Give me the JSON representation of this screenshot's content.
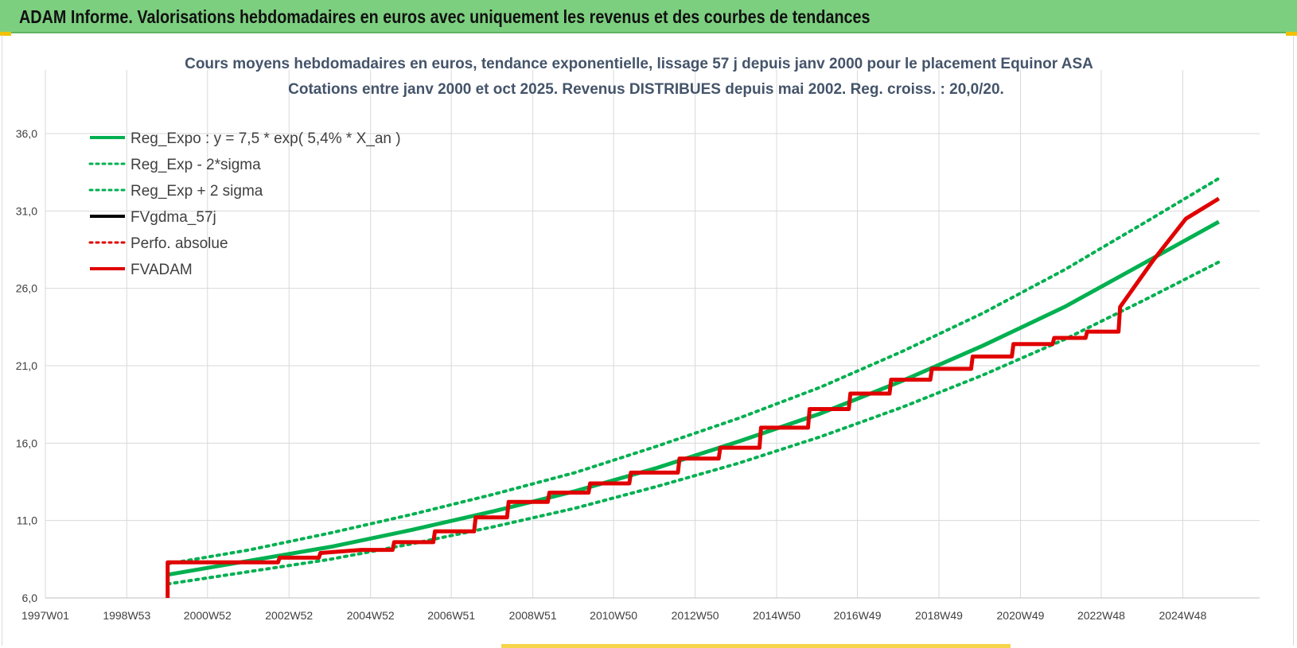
{
  "header": {
    "title": "ADAM Informe. Valorisations hebdomadaires en euros avec uniquement les revenus et des courbes de tendances"
  },
  "colors": {
    "header_bg": "#7ccf7f",
    "regression": "#00b050",
    "fvgdma": "#000000",
    "fvadam": "#e00000",
    "grid": "#d9d9d9"
  },
  "chart_data": {
    "type": "line",
    "title": [
      "Cours moyens hebdomadaires en euros, tendance exponentielle, lissage 57 j depuis janv 2000 pour le placement Equinor ASA",
      "Cotations entre janv 2000 et oct 2025. Revenus DISTRIBUES depuis mai 2002. Reg. croiss. : 20,0/20."
    ],
    "xlabel": "",
    "ylabel": "",
    "x_range": [
      "1997W01",
      "2026W42"
    ],
    "ylim": [
      6.0,
      36.0
    ],
    "y_ticks": [
      "6,0",
      "11,0",
      "16,0",
      "21,0",
      "26,0",
      "31,0",
      "36,0"
    ],
    "x_ticks": [
      "1997W01",
      "1998W53",
      "2000W52",
      "2002W52",
      "2004W52",
      "2006W51",
      "2008W51",
      "2010W50",
      "2012W50",
      "2014W50",
      "2016W49",
      "2018W49",
      "2020W49",
      "2022W48",
      "2024W48"
    ],
    "grid": true,
    "legend_position": "top-left",
    "series": [
      {
        "name": "Reg_Expo : y = 7,5 * exp( 5,4% *  X_an )",
        "style": "solid",
        "color": "#00b050",
        "x": [
          "2000W01",
          "2002W01",
          "2004W01",
          "2006W01",
          "2008W01",
          "2010W01",
          "2012W01",
          "2014W01",
          "2016W01",
          "2018W01",
          "2020W01",
          "2022W01",
          "2024W01",
          "2025W42"
        ],
        "values": [
          7.5,
          8.4,
          9.3,
          10.4,
          11.6,
          12.9,
          14.4,
          16.1,
          17.9,
          20.0,
          22.3,
          24.8,
          27.7,
          30.3
        ]
      },
      {
        "name": "Reg_Exp - 2*sigma",
        "style": "dotted",
        "color": "#00b050",
        "x": [
          "2000W01",
          "2002W01",
          "2004W01",
          "2006W01",
          "2008W01",
          "2010W01",
          "2012W01",
          "2014W01",
          "2016W01",
          "2018W01",
          "2020W01",
          "2022W01",
          "2024W01",
          "2025W42"
        ],
        "values": [
          6.9,
          7.7,
          8.5,
          9.5,
          10.6,
          11.8,
          13.2,
          14.7,
          16.4,
          18.3,
          20.4,
          22.7,
          25.3,
          27.7
        ]
      },
      {
        "name": "Reg_Exp + 2 sigma",
        "style": "dotted",
        "color": "#00b050",
        "x": [
          "2000W01",
          "2002W01",
          "2004W01",
          "2006W01",
          "2008W01",
          "2010W01",
          "2012W01",
          "2014W01",
          "2016W01",
          "2018W01",
          "2020W01",
          "2022W01",
          "2024W01",
          "2025W42"
        ],
        "values": [
          8.2,
          9.1,
          10.2,
          11.4,
          12.7,
          14.1,
          15.8,
          17.6,
          19.6,
          21.9,
          24.4,
          27.2,
          30.3,
          33.1
        ]
      },
      {
        "name": "FVgdma_57j",
        "style": "solid",
        "color": "#000000",
        "x": [
          "2000W01",
          "2000W40",
          "2001W40",
          "2002W40",
          "2003W40",
          "2004W40",
          "2005W30",
          "2006W30",
          "2007W30",
          "2008W20",
          "2009W20",
          "2010W20",
          "2011W20",
          "2012W30",
          "2013W30",
          "2014W30",
          "2015W40",
          "2016W40",
          "2017W40",
          "2018W40",
          "2019W40",
          "2020W40",
          "2021W40",
          "2022W30",
          "2023W20",
          "2024W10",
          "2024W52",
          "2025W42"
        ],
        "values": [
          8.3,
          8.3,
          8.3,
          8.6,
          8.9,
          9.1,
          9.6,
          10.3,
          11.2,
          12.2,
          12.8,
          13.4,
          14.1,
          15.0,
          15.7,
          17.0,
          18.2,
          19.2,
          20.1,
          20.8,
          21.6,
          22.4,
          22.8,
          23.2,
          24.8,
          27.8,
          30.5,
          31.8
        ]
      },
      {
        "name": "Perfo. absolue",
        "style": "dotted",
        "color": "#e00000",
        "x": [],
        "values": []
      },
      {
        "name": "FVADAM",
        "style": "solid",
        "color": "#e00000",
        "x": [
          "2000W01",
          "2000W40",
          "2001W40",
          "2002W40",
          "2003W40",
          "2004W40",
          "2005W30",
          "2006W30",
          "2007W30",
          "2008W20",
          "2009W20",
          "2010W20",
          "2011W20",
          "2012W30",
          "2013W30",
          "2014W30",
          "2015W40",
          "2016W40",
          "2017W40",
          "2018W40",
          "2019W40",
          "2020W40",
          "2021W40",
          "2022W30",
          "2023W20",
          "2024W10",
          "2024W52",
          "2025W42"
        ],
        "values": [
          8.3,
          8.3,
          8.3,
          8.6,
          8.9,
          9.1,
          9.6,
          10.3,
          11.2,
          12.2,
          12.8,
          13.4,
          14.1,
          15.0,
          15.7,
          17.0,
          18.2,
          19.2,
          20.1,
          20.8,
          21.6,
          22.4,
          22.8,
          23.2,
          24.8,
          27.8,
          30.5,
          31.8
        ]
      }
    ]
  }
}
